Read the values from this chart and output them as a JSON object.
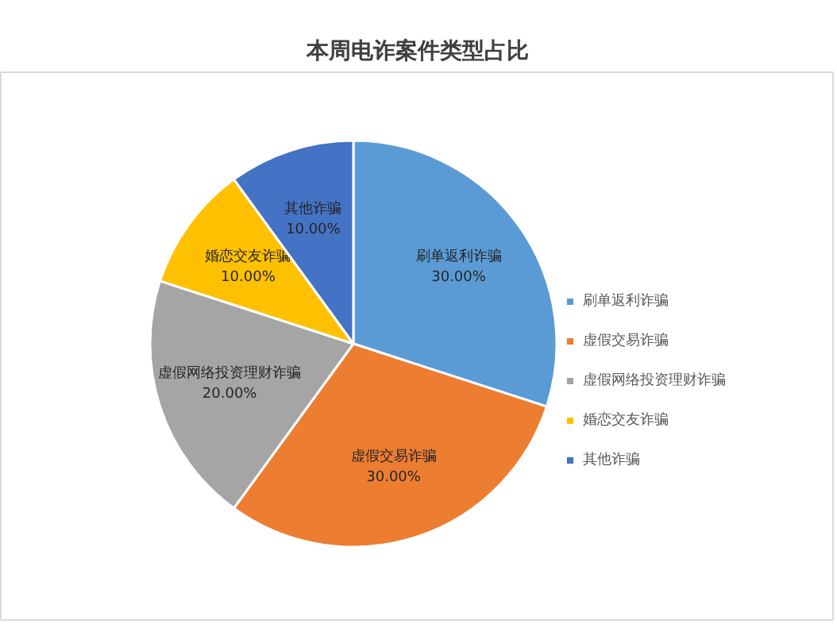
{
  "chart_data": {
    "type": "pie",
    "title": "本周电诈案件类型占比",
    "categories": [
      "刷单返利诈骗",
      "虚假交易诈骗",
      "虚假网络投资理财诈骗",
      "婚恋交友诈骗",
      "其他诈骗"
    ],
    "values": [
      30,
      30,
      20,
      10,
      10
    ],
    "value_labels": [
      "30.00%",
      "30.00%",
      "20.00%",
      "10.00%",
      "10.00%"
    ],
    "colors": [
      "#5b9bd5",
      "#ed7d31",
      "#a5a5a5",
      "#ffc000",
      "#4472c4"
    ],
    "legend": "right"
  }
}
